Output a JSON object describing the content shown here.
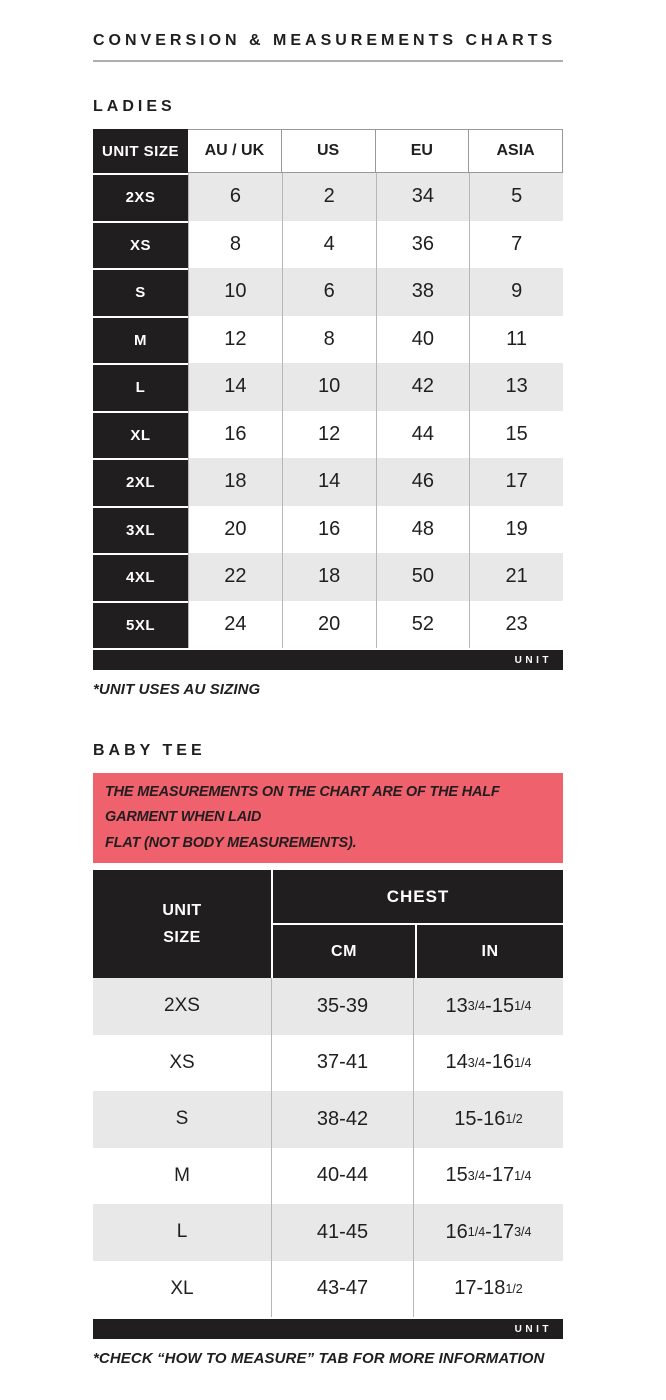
{
  "page": {
    "title": "CONVERSION & MEASUREMENTS CHARTS"
  },
  "colors": {
    "ink": "#211e1f",
    "accent": "#ef616c",
    "row_shade": "#e9e8e8"
  },
  "ladies": {
    "heading": "LADIES",
    "columns": [
      "UNIT SIZE",
      "AU / UK",
      "US",
      "EU",
      "ASIA"
    ],
    "rows": [
      {
        "size": "2XS",
        "values": [
          "6",
          "2",
          "34",
          "5"
        ]
      },
      {
        "size": "XS",
        "values": [
          "8",
          "4",
          "36",
          "7"
        ]
      },
      {
        "size": "S",
        "values": [
          "10",
          "6",
          "38",
          "9"
        ]
      },
      {
        "size": "M",
        "values": [
          "12",
          "8",
          "40",
          "11"
        ]
      },
      {
        "size": "L",
        "values": [
          "14",
          "10",
          "42",
          "13"
        ]
      },
      {
        "size": "XL",
        "values": [
          "16",
          "12",
          "44",
          "15"
        ]
      },
      {
        "size": "2XL",
        "values": [
          "18",
          "14",
          "46",
          "17"
        ]
      },
      {
        "size": "3XL",
        "values": [
          "20",
          "16",
          "48",
          "19"
        ]
      },
      {
        "size": "4XL",
        "values": [
          "22",
          "18",
          "50",
          "21"
        ]
      },
      {
        "size": "5XL",
        "values": [
          "24",
          "20",
          "52",
          "23"
        ]
      }
    ],
    "footer": "UNIT",
    "note": "*UNIT USES AU SIZING"
  },
  "baby_tee": {
    "heading": "BABY TEE",
    "banner": "THE MEASUREMENTS ON THE CHART ARE OF THE HALF GARMENT WHEN LAID\nFLAT (NOT BODY MEASUREMENTS).",
    "header": {
      "unit_size": "UNIT\nSIZE",
      "chest": "CHEST",
      "cm": "CM",
      "in": "IN"
    },
    "rows": [
      {
        "size": "2XS",
        "cm": "35-39",
        "in": "13{3/4}-15{1/4}"
      },
      {
        "size": "XS",
        "cm": "37-41",
        "in": "14{3/4}-16{1/4}"
      },
      {
        "size": "S",
        "cm": "38-42",
        "in": "15-16{1/2}"
      },
      {
        "size": "M",
        "cm": "40-44",
        "in": "15{3/4}-17{1/4}"
      },
      {
        "size": "L",
        "cm": "41-45",
        "in": "16{1/4}-17{3/4}"
      },
      {
        "size": "XL",
        "cm": "43-47",
        "in": "17-18{1/2}"
      }
    ],
    "footer": "UNIT",
    "note": "*CHECK “HOW TO MEASURE” TAB FOR MORE INFORMATION"
  }
}
